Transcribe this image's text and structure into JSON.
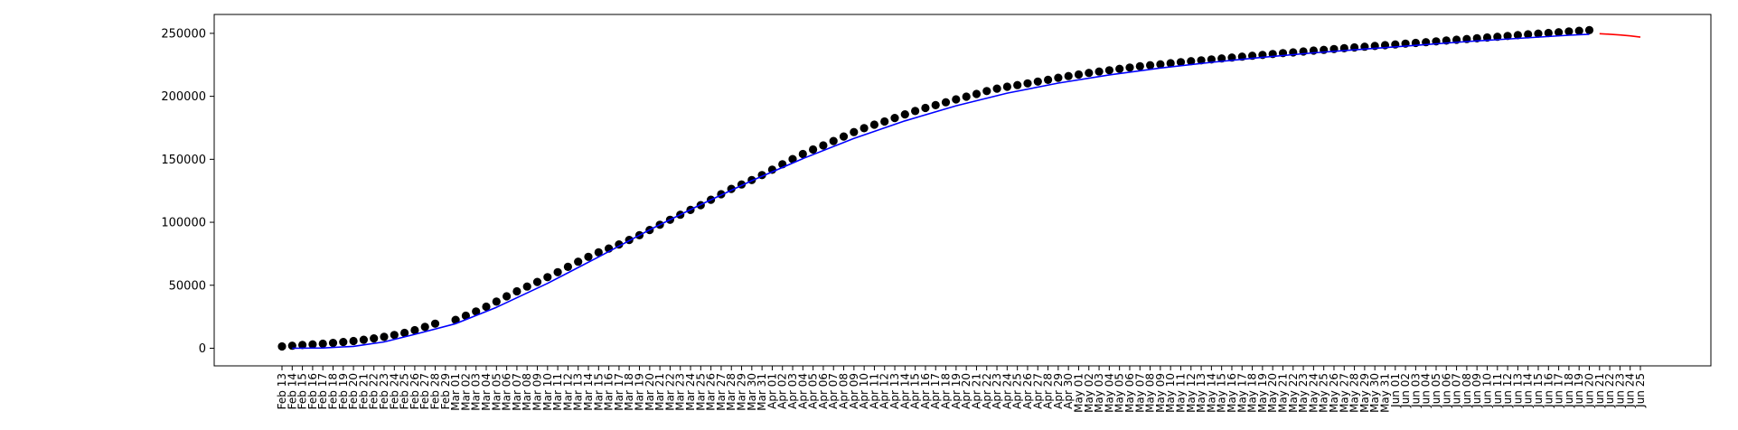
{
  "chart_data": {
    "type": "line",
    "title": "",
    "xlabel": "",
    "ylabel": "",
    "ylim": [
      -14000,
      265000
    ],
    "yticks": [
      0,
      50000,
      100000,
      150000,
      200000,
      250000
    ],
    "ytick_labels": [
      "0",
      "50000",
      "100000",
      "150000",
      "200000",
      "250000"
    ],
    "x_start": "2020-02-13",
    "x_end": "2020-06-25",
    "grid": false,
    "legend": "none",
    "colors": {
      "observed": "#000000",
      "fit": "#0000ff",
      "forecast": "#ff0000"
    },
    "series": [
      {
        "kind": "scatter",
        "color": "#000000",
        "points": [
          [
            "Feb 13",
            1400
          ],
          [
            "Feb 14",
            2000
          ],
          [
            "Feb 15",
            2600
          ],
          [
            "Feb 16",
            3100
          ],
          [
            "Feb 17",
            3600
          ],
          [
            "Feb 18",
            4200
          ],
          [
            "Feb 19",
            4900
          ],
          [
            "Feb 20",
            5700
          ],
          [
            "Feb 21",
            6700
          ],
          [
            "Feb 22",
            7800
          ],
          [
            "Feb 23",
            9000
          ],
          [
            "Feb 24",
            10500
          ],
          [
            "Feb 25",
            12200
          ],
          [
            "Feb 26",
            14300
          ],
          [
            "Feb 27",
            16900
          ],
          [
            "Feb 28",
            19500
          ],
          [
            "Mar 01",
            22500
          ],
          [
            "Mar 02",
            25800
          ],
          [
            "Mar 03",
            29200
          ],
          [
            "Mar 04",
            33000
          ],
          [
            "Mar 05",
            37000
          ],
          [
            "Mar 06",
            41200
          ],
          [
            "Mar 07",
            45200
          ],
          [
            "Mar 08",
            49000
          ],
          [
            "Mar 09",
            52600
          ],
          [
            "Mar 10",
            56400
          ],
          [
            "Mar 11",
            60400
          ],
          [
            "Mar 12",
            64600
          ],
          [
            "Mar 13",
            68700
          ],
          [
            "Mar 14",
            72600
          ],
          [
            "Mar 15",
            76100
          ],
          [
            "Mar 16",
            79200
          ],
          [
            "Mar 17",
            82400
          ],
          [
            "Mar 18",
            86000
          ],
          [
            "Mar 19",
            89700
          ],
          [
            "Mar 20",
            93900
          ],
          [
            "Mar 21",
            98000
          ],
          [
            "Mar 22",
            102000
          ],
          [
            "Mar 23",
            106000
          ],
          [
            "Mar 24",
            109800
          ],
          [
            "Mar 25",
            113600
          ],
          [
            "Mar 26",
            117900
          ],
          [
            "Mar 27",
            122300
          ],
          [
            "Mar 28",
            126500
          ],
          [
            "Mar 29",
            130000
          ],
          [
            "Mar 30",
            133500
          ],
          [
            "Mar 31",
            137500
          ],
          [
            "Apr 01",
            141700
          ],
          [
            "Apr 02",
            146000
          ],
          [
            "Apr 03",
            150200
          ],
          [
            "Apr 04",
            154200
          ],
          [
            "Apr 05",
            157800
          ],
          [
            "Apr 06",
            161000
          ],
          [
            "Apr 07",
            164500
          ],
          [
            "Apr 08",
            168100
          ],
          [
            "Apr 09",
            171600
          ],
          [
            "Apr 10",
            174700
          ],
          [
            "Apr 11",
            177500
          ],
          [
            "Apr 12",
            180000
          ],
          [
            "Apr 13",
            182800
          ],
          [
            "Apr 14",
            185700
          ],
          [
            "Apr 15",
            188300
          ],
          [
            "Apr 16",
            190800
          ],
          [
            "Apr 17",
            193000
          ],
          [
            "Apr 18",
            195300
          ],
          [
            "Apr 19",
            197600
          ],
          [
            "Apr 20",
            199700
          ],
          [
            "Apr 21",
            201900
          ],
          [
            "Apr 22",
            204200
          ],
          [
            "Apr 23",
            206100
          ],
          [
            "Apr 24",
            207600
          ],
          [
            "Apr 25",
            208900
          ],
          [
            "Apr 26",
            210300
          ],
          [
            "Apr 27",
            211700
          ],
          [
            "Apr 28",
            213100
          ],
          [
            "Apr 29",
            214700
          ],
          [
            "Apr 30",
            216100
          ],
          [
            "May 01",
            217300
          ],
          [
            "May 02",
            218600
          ],
          [
            "May 03",
            219700
          ],
          [
            "May 04",
            220700
          ],
          [
            "May 05",
            221800
          ],
          [
            "May 06",
            222800
          ],
          [
            "May 07",
            223800
          ],
          [
            "May 08",
            224700
          ],
          [
            "May 09",
            225400
          ],
          [
            "May 10",
            226300
          ],
          [
            "May 11",
            227100
          ],
          [
            "May 12",
            227900
          ],
          [
            "May 13",
            228600
          ],
          [
            "May 14",
            229300
          ],
          [
            "May 15",
            230100
          ],
          [
            "May 16",
            230800
          ],
          [
            "May 17",
            231500
          ],
          [
            "May 18",
            232200
          ],
          [
            "May 19",
            232900
          ],
          [
            "May 20",
            233600
          ],
          [
            "May 21",
            234300
          ],
          [
            "May 22",
            234900
          ],
          [
            "May 23",
            235600
          ],
          [
            "May 24",
            236300
          ],
          [
            "May 25",
            236900
          ],
          [
            "May 26",
            237500
          ],
          [
            "May 27",
            238200
          ],
          [
            "May 28",
            238800
          ],
          [
            "May 29",
            239400
          ],
          [
            "May 30",
            240000
          ],
          [
            "May 31",
            240600
          ],
          [
            "Jun 01",
            241200
          ],
          [
            "Jun 02",
            241800
          ],
          [
            "Jun 03",
            242400
          ],
          [
            "Jun 04",
            243000
          ],
          [
            "Jun 05",
            243600
          ],
          [
            "Jun 06",
            244300
          ],
          [
            "Jun 07",
            244900
          ],
          [
            "Jun 08",
            245500
          ],
          [
            "Jun 09",
            246100
          ],
          [
            "Jun 10",
            246700
          ],
          [
            "Jun 11",
            247300
          ],
          [
            "Jun 12",
            247900
          ],
          [
            "Jun 13",
            248600
          ],
          [
            "Jun 14",
            249200
          ],
          [
            "Jun 15",
            249800
          ],
          [
            "Jun 16",
            250300
          ],
          [
            "Jun 17",
            250900
          ],
          [
            "Jun 18",
            251500
          ],
          [
            "Jun 19",
            252000
          ],
          [
            "Jun 20",
            252500
          ]
        ]
      },
      {
        "kind": "line",
        "color": "#0000ff",
        "points": [
          [
            "Feb 14",
            0
          ],
          [
            "Feb 17",
            200
          ],
          [
            "Feb 20",
            1500
          ],
          [
            "Feb 23",
            5000
          ],
          [
            "Feb 26",
            11000
          ],
          [
            "Mar 01",
            19500
          ],
          [
            "Mar 05",
            32500
          ],
          [
            "Mar 10",
            51500
          ],
          [
            "Mar 15",
            72500
          ],
          [
            "Mar 20",
            94000
          ],
          [
            "Mar 25",
            114000
          ],
          [
            "Mar 30",
            133000
          ],
          [
            "Apr 04",
            150500
          ],
          [
            "Apr 09",
            166500
          ],
          [
            "Apr 14",
            180500
          ],
          [
            "Apr 19",
            192500
          ],
          [
            "Apr 24",
            202500
          ],
          [
            "Apr 29",
            210500
          ],
          [
            "May 04",
            217000
          ],
          [
            "May 09",
            222500
          ],
          [
            "May 14",
            227000
          ],
          [
            "May 19",
            231000
          ],
          [
            "May 24",
            234500
          ],
          [
            "May 29",
            237500
          ],
          [
            "Jun 03",
            240500
          ],
          [
            "Jun 08",
            243500
          ],
          [
            "Jun 13",
            246000
          ],
          [
            "Jun 18",
            248500
          ],
          [
            "Jun 20",
            249300
          ]
        ]
      },
      {
        "kind": "line",
        "color": "#ff0000",
        "points": [
          [
            "Jun 21",
            249700
          ],
          [
            "Jun 22",
            249300
          ],
          [
            "Jun 23",
            248700
          ],
          [
            "Jun 24",
            248000
          ],
          [
            "Jun 25",
            247000
          ]
        ]
      }
    ]
  }
}
